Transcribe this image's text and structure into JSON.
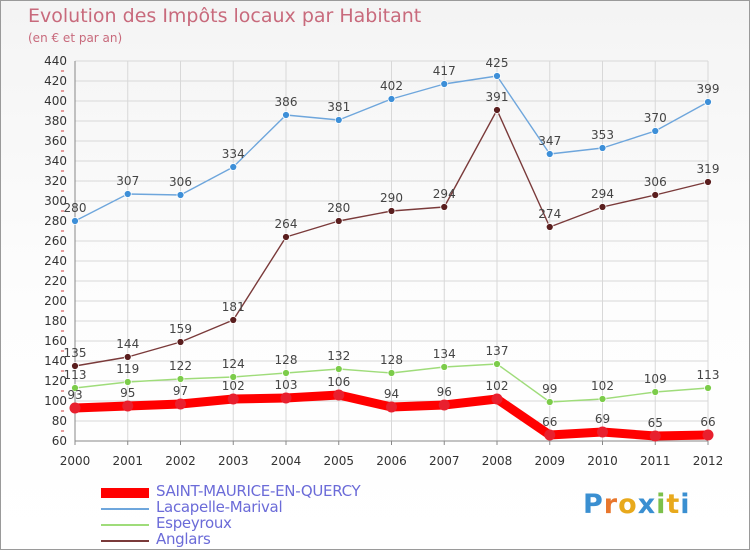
{
  "title": "Evolution des Impôts locaux par Habitant",
  "subtitle": "(en € et par an)",
  "logo": {
    "text": "Proxiti",
    "colors": [
      "#3a8fd1",
      "#e8762c",
      "#e8a91c",
      "#3a8fd1",
      "#7cc04a",
      "#e8a91c",
      "#3a8fd1"
    ]
  },
  "chart_data": {
    "type": "line",
    "title": "Evolution des Impôts locaux par Habitant",
    "subtitle": "(en € et par an)",
    "xlabel": "",
    "ylabel": "",
    "x": [
      "2000",
      "2001",
      "2002",
      "2003",
      "2004",
      "2005",
      "2006",
      "2007",
      "2008",
      "2009",
      "2010",
      "2011",
      "2012"
    ],
    "yticks": [
      60,
      80,
      100,
      120,
      140,
      160,
      180,
      200,
      220,
      240,
      260,
      280,
      300,
      320,
      340,
      360,
      380,
      400,
      420,
      440
    ],
    "ylim": [
      60,
      440
    ],
    "grid": true,
    "legend_position": "bottom-left",
    "series": [
      {
        "name": "SAINT-MAURICE-EN-QUERCY",
        "color": "#ff0000",
        "marker_color": "#e8202e",
        "thick": true,
        "values": [
          93,
          95,
          97,
          102,
          103,
          106,
          94,
          96,
          102,
          66,
          69,
          65,
          66
        ]
      },
      {
        "name": "Lacapelle-Marival",
        "color": "#6ea6dc",
        "marker_color": "#3d8fd8",
        "thick": false,
        "values": [
          280,
          307,
          306,
          334,
          386,
          381,
          402,
          417,
          425,
          347,
          353,
          370,
          399
        ]
      },
      {
        "name": "Espeyroux",
        "color": "#9fdc7a",
        "marker_color": "#7ccc4a",
        "thick": false,
        "values": [
          113,
          119,
          122,
          124,
          128,
          132,
          128,
          134,
          137,
          99,
          102,
          109,
          113
        ]
      },
      {
        "name": "Anglars",
        "color": "#7a3a3a",
        "marker_color": "#5a1e1e",
        "thick": false,
        "values": [
          135,
          144,
          159,
          181,
          264,
          280,
          290,
          294,
          391,
          274,
          294,
          306,
          319
        ]
      }
    ]
  }
}
